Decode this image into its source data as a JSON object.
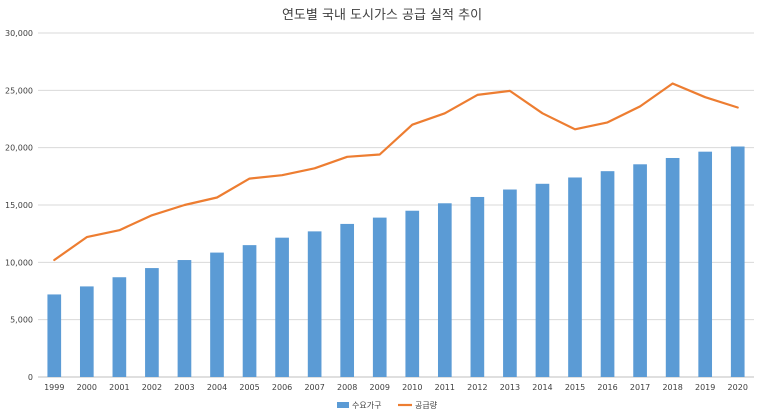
{
  "chart_data": {
    "type": "bar",
    "title": "연도별 국내 도시가스 공급 실적 추이",
    "xlabel": "",
    "ylabel": "",
    "ylim": [
      0,
      30000
    ],
    "yticks": [
      "0",
      "5,000",
      "10,000",
      "15,000",
      "20,000",
      "25,000",
      "30,000"
    ],
    "categories": [
      "1999",
      "2000",
      "2001",
      "2002",
      "2003",
      "2004",
      "2005",
      "2006",
      "2007",
      "2008",
      "2009",
      "2010",
      "2011",
      "2012",
      "2013",
      "2014",
      "2015",
      "2016",
      "2017",
      "2018",
      "2019",
      "2020"
    ],
    "series": [
      {
        "name": "수요가구",
        "type": "bar",
        "color": "#5B9BD5",
        "values": [
          7200,
          7900,
          8700,
          9500,
          10200,
          10850,
          11500,
          12150,
          12700,
          13350,
          13900,
          14500,
          15150,
          15700,
          16350,
          16850,
          17400,
          17950,
          18550,
          19100,
          19650,
          20100
        ]
      },
      {
        "name": "공급량",
        "type": "line",
        "color": "#ED7D31",
        "values": [
          10200,
          12200,
          12800,
          14100,
          15000,
          15650,
          17300,
          17600,
          18200,
          19200,
          19400,
          22000,
          23000,
          24600,
          24950,
          23000,
          21600,
          22200,
          23600,
          25600,
          24400,
          23500
        ]
      }
    ],
    "grid": true,
    "legend_position": "bottom"
  }
}
